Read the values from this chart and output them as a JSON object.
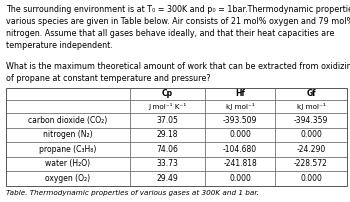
{
  "title_text": "The surrounding environment is at T₀ = 300K and p₀ = 1bar.Thermodynamic properties of\nvarious species are given in Table below. Air consists of 21 mol% oxygen and 79 mol%\nnitrogen. Assume that all gases behave ideally, and that their heat capacities are\ntemperature independent.",
  "question_text": "What is the maximum theoretical amount of work that can be extracted from oxidizing a mole\nof propane at constant temperature and pressure?",
  "header_row1": [
    "",
    "Cp",
    "Hf",
    "Gf"
  ],
  "header_row2": [
    "",
    "J mol⁻¹ K⁻¹",
    "kJ mol⁻¹",
    "kJ mol⁻¹"
  ],
  "row_labels": [
    "carbon dioxide (CO₂)",
    "nitrogen (N₂)",
    "propane (C₃H₈)",
    "water (H₂O)",
    "oxygen (O₂)"
  ],
  "data": [
    [
      37.05,
      -393.509,
      -394.359
    ],
    [
      29.18,
      0.0,
      0.0
    ],
    [
      74.06,
      -104.68,
      -24.29
    ],
    [
      33.73,
      -241.818,
      -228.572
    ],
    [
      29.49,
      0.0,
      0.0
    ]
  ],
  "caption": "Table. Thermodynamic properties of various gases at 300K and 1 bar.",
  "bg_color": "#ffffff",
  "text_color": "#000000",
  "font_size_body": 5.8,
  "font_size_table": 5.5
}
